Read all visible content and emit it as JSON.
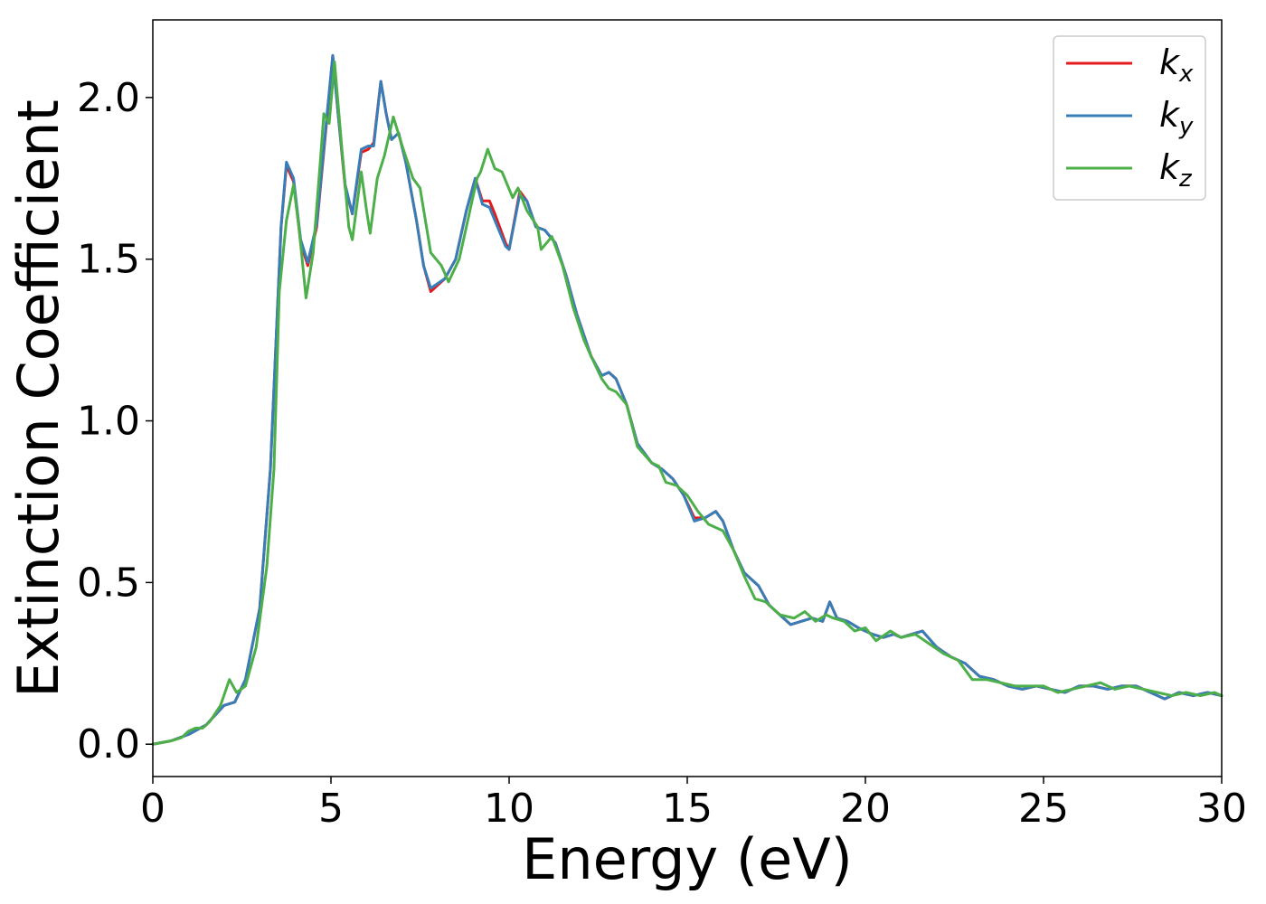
{
  "chart_data": {
    "type": "line",
    "title": "",
    "xlabel": "Energy (eV)",
    "ylabel": "Extinction Coefficient",
    "xlim": [
      0,
      30
    ],
    "ylim": [
      -0.1,
      2.24
    ],
    "xticks": [
      0,
      5,
      10,
      15,
      20,
      25,
      30
    ],
    "xtick_labels": [
      "0",
      "5",
      "10",
      "15",
      "20",
      "25",
      "30"
    ],
    "yticks": [
      0.0,
      0.5,
      1.0,
      1.5,
      2.0
    ],
    "ytick_labels": [
      "0.0",
      "0.5",
      "1.0",
      "1.5",
      "2.0"
    ],
    "grid": false,
    "legend_position": "top-right",
    "series": [
      {
        "name": "k_x",
        "label_main": "k",
        "label_sub": "x",
        "color": "#e41a1c",
        "points": [
          [
            0,
            0
          ],
          [
            0.5,
            0.01
          ],
          [
            1.0,
            0.03
          ],
          [
            1.5,
            0.06
          ],
          [
            2.0,
            0.12
          ],
          [
            2.3,
            0.13
          ],
          [
            2.6,
            0.2
          ],
          [
            3.0,
            0.42
          ],
          [
            3.3,
            0.85
          ],
          [
            3.6,
            1.6
          ],
          [
            3.75,
            1.79
          ],
          [
            3.95,
            1.74
          ],
          [
            4.15,
            1.55
          ],
          [
            4.35,
            1.48
          ],
          [
            4.6,
            1.6
          ],
          [
            4.9,
            1.95
          ],
          [
            5.05,
            2.13
          ],
          [
            5.2,
            1.95
          ],
          [
            5.4,
            1.72
          ],
          [
            5.6,
            1.64
          ],
          [
            5.85,
            1.83
          ],
          [
            6.05,
            1.84
          ],
          [
            6.2,
            1.86
          ],
          [
            6.4,
            2.05
          ],
          [
            6.55,
            1.95
          ],
          [
            6.7,
            1.87
          ],
          [
            6.9,
            1.89
          ],
          [
            7.1,
            1.8
          ],
          [
            7.4,
            1.62
          ],
          [
            7.6,
            1.48
          ],
          [
            7.8,
            1.4
          ],
          [
            8.2,
            1.44
          ],
          [
            8.5,
            1.5
          ],
          [
            8.8,
            1.65
          ],
          [
            9.05,
            1.75
          ],
          [
            9.25,
            1.68
          ],
          [
            9.45,
            1.68
          ],
          [
            9.6,
            1.64
          ],
          [
            9.9,
            1.55
          ],
          [
            10.0,
            1.53
          ],
          [
            10.3,
            1.71
          ],
          [
            10.5,
            1.68
          ],
          [
            10.75,
            1.6
          ],
          [
            11.0,
            1.59
          ],
          [
            11.3,
            1.55
          ],
          [
            11.6,
            1.45
          ],
          [
            11.9,
            1.33
          ],
          [
            12.3,
            1.2
          ],
          [
            12.6,
            1.14
          ],
          [
            12.8,
            1.15
          ],
          [
            13.0,
            1.13
          ],
          [
            13.3,
            1.05
          ],
          [
            13.6,
            0.93
          ],
          [
            14.0,
            0.87
          ],
          [
            14.3,
            0.85
          ],
          [
            14.6,
            0.82
          ],
          [
            14.9,
            0.77
          ],
          [
            15.2,
            0.7
          ],
          [
            15.5,
            0.7
          ],
          [
            15.8,
            0.72
          ],
          [
            16.0,
            0.69
          ],
          [
            16.3,
            0.6
          ],
          [
            16.6,
            0.53
          ],
          [
            17.0,
            0.49
          ],
          [
            17.3,
            0.43
          ],
          [
            17.5,
            0.41
          ],
          [
            17.9,
            0.37
          ],
          [
            18.2,
            0.38
          ],
          [
            18.5,
            0.39
          ],
          [
            18.8,
            0.38
          ],
          [
            19.0,
            0.44
          ],
          [
            19.2,
            0.39
          ],
          [
            19.5,
            0.38
          ],
          [
            19.8,
            0.36
          ],
          [
            20.2,
            0.34
          ],
          [
            20.5,
            0.33
          ],
          [
            20.8,
            0.34
          ],
          [
            21.0,
            0.33
          ],
          [
            21.3,
            0.34
          ],
          [
            21.6,
            0.35
          ],
          [
            22.0,
            0.3
          ],
          [
            22.4,
            0.27
          ],
          [
            22.8,
            0.25
          ],
          [
            23.2,
            0.21
          ],
          [
            23.6,
            0.2
          ],
          [
            24.0,
            0.18
          ],
          [
            24.4,
            0.17
          ],
          [
            24.8,
            0.18
          ],
          [
            25.2,
            0.17
          ],
          [
            25.6,
            0.16
          ],
          [
            26.0,
            0.18
          ],
          [
            26.4,
            0.18
          ],
          [
            26.8,
            0.17
          ],
          [
            27.2,
            0.18
          ],
          [
            27.6,
            0.18
          ],
          [
            28.0,
            0.16
          ],
          [
            28.4,
            0.14
          ],
          [
            28.8,
            0.16
          ],
          [
            29.2,
            0.15
          ],
          [
            29.6,
            0.16
          ],
          [
            30.0,
            0.15
          ]
        ]
      },
      {
        "name": "k_y",
        "label_main": "k",
        "label_sub": "y",
        "color": "#377eb8",
        "points": [
          [
            0,
            0
          ],
          [
            0.5,
            0.01
          ],
          [
            1.0,
            0.03
          ],
          [
            1.5,
            0.06
          ],
          [
            2.0,
            0.12
          ],
          [
            2.3,
            0.13
          ],
          [
            2.6,
            0.2
          ],
          [
            3.0,
            0.42
          ],
          [
            3.3,
            0.85
          ],
          [
            3.6,
            1.6
          ],
          [
            3.75,
            1.8
          ],
          [
            3.95,
            1.75
          ],
          [
            4.15,
            1.56
          ],
          [
            4.35,
            1.49
          ],
          [
            4.6,
            1.61
          ],
          [
            4.9,
            1.96
          ],
          [
            5.05,
            2.13
          ],
          [
            5.2,
            1.95
          ],
          [
            5.4,
            1.73
          ],
          [
            5.6,
            1.64
          ],
          [
            5.85,
            1.84
          ],
          [
            6.05,
            1.85
          ],
          [
            6.2,
            1.85
          ],
          [
            6.4,
            2.05
          ],
          [
            6.55,
            1.95
          ],
          [
            6.7,
            1.87
          ],
          [
            6.9,
            1.89
          ],
          [
            7.1,
            1.8
          ],
          [
            7.4,
            1.62
          ],
          [
            7.6,
            1.48
          ],
          [
            7.8,
            1.41
          ],
          [
            8.2,
            1.44
          ],
          [
            8.5,
            1.5
          ],
          [
            8.8,
            1.65
          ],
          [
            9.05,
            1.75
          ],
          [
            9.25,
            1.67
          ],
          [
            9.45,
            1.66
          ],
          [
            9.6,
            1.62
          ],
          [
            9.9,
            1.54
          ],
          [
            10.0,
            1.53
          ],
          [
            10.3,
            1.7
          ],
          [
            10.5,
            1.68
          ],
          [
            10.75,
            1.6
          ],
          [
            11.0,
            1.59
          ],
          [
            11.3,
            1.55
          ],
          [
            11.6,
            1.45
          ],
          [
            11.9,
            1.33
          ],
          [
            12.3,
            1.2
          ],
          [
            12.6,
            1.14
          ],
          [
            12.8,
            1.15
          ],
          [
            13.0,
            1.13
          ],
          [
            13.3,
            1.05
          ],
          [
            13.6,
            0.93
          ],
          [
            14.0,
            0.87
          ],
          [
            14.3,
            0.85
          ],
          [
            14.6,
            0.82
          ],
          [
            14.9,
            0.77
          ],
          [
            15.2,
            0.69
          ],
          [
            15.5,
            0.7
          ],
          [
            15.8,
            0.72
          ],
          [
            16.0,
            0.69
          ],
          [
            16.3,
            0.6
          ],
          [
            16.6,
            0.53
          ],
          [
            17.0,
            0.49
          ],
          [
            17.3,
            0.43
          ],
          [
            17.5,
            0.41
          ],
          [
            17.9,
            0.37
          ],
          [
            18.2,
            0.38
          ],
          [
            18.5,
            0.39
          ],
          [
            18.8,
            0.38
          ],
          [
            19.0,
            0.44
          ],
          [
            19.2,
            0.39
          ],
          [
            19.5,
            0.38
          ],
          [
            19.8,
            0.36
          ],
          [
            20.2,
            0.34
          ],
          [
            20.5,
            0.33
          ],
          [
            20.8,
            0.34
          ],
          [
            21.0,
            0.33
          ],
          [
            21.3,
            0.34
          ],
          [
            21.6,
            0.35
          ],
          [
            22.0,
            0.3
          ],
          [
            22.4,
            0.27
          ],
          [
            22.8,
            0.25
          ],
          [
            23.2,
            0.21
          ],
          [
            23.6,
            0.2
          ],
          [
            24.0,
            0.18
          ],
          [
            24.4,
            0.17
          ],
          [
            24.8,
            0.18
          ],
          [
            25.2,
            0.17
          ],
          [
            25.6,
            0.16
          ],
          [
            26.0,
            0.18
          ],
          [
            26.4,
            0.18
          ],
          [
            26.8,
            0.17
          ],
          [
            27.2,
            0.18
          ],
          [
            27.6,
            0.18
          ],
          [
            28.0,
            0.16
          ],
          [
            28.4,
            0.14
          ],
          [
            28.8,
            0.16
          ],
          [
            29.2,
            0.15
          ],
          [
            29.6,
            0.16
          ],
          [
            30.0,
            0.15
          ]
        ]
      },
      {
        "name": "k_z",
        "label_main": "k",
        "label_sub": "z",
        "color": "#4daf4a",
        "points": [
          [
            0,
            0
          ],
          [
            0.5,
            0.01
          ],
          [
            0.8,
            0.02
          ],
          [
            1.0,
            0.04
          ],
          [
            1.2,
            0.05
          ],
          [
            1.4,
            0.05
          ],
          [
            1.6,
            0.07
          ],
          [
            1.9,
            0.12
          ],
          [
            2.15,
            0.2
          ],
          [
            2.35,
            0.16
          ],
          [
            2.6,
            0.18
          ],
          [
            2.9,
            0.3
          ],
          [
            3.2,
            0.55
          ],
          [
            3.4,
            0.85
          ],
          [
            3.55,
            1.4
          ],
          [
            3.75,
            1.62
          ],
          [
            3.95,
            1.73
          ],
          [
            4.1,
            1.6
          ],
          [
            4.3,
            1.38
          ],
          [
            4.5,
            1.52
          ],
          [
            4.7,
            1.8
          ],
          [
            4.8,
            1.95
          ],
          [
            4.95,
            1.92
          ],
          [
            5.1,
            2.11
          ],
          [
            5.3,
            1.85
          ],
          [
            5.5,
            1.6
          ],
          [
            5.6,
            1.56
          ],
          [
            5.85,
            1.77
          ],
          [
            6.0,
            1.65
          ],
          [
            6.1,
            1.58
          ],
          [
            6.3,
            1.75
          ],
          [
            6.5,
            1.82
          ],
          [
            6.75,
            1.94
          ],
          [
            7.0,
            1.85
          ],
          [
            7.3,
            1.75
          ],
          [
            7.5,
            1.72
          ],
          [
            7.8,
            1.52
          ],
          [
            8.1,
            1.48
          ],
          [
            8.3,
            1.43
          ],
          [
            8.6,
            1.5
          ],
          [
            8.9,
            1.65
          ],
          [
            9.1,
            1.75
          ],
          [
            9.2,
            1.77
          ],
          [
            9.4,
            1.84
          ],
          [
            9.6,
            1.78
          ],
          [
            9.8,
            1.77
          ],
          [
            10.1,
            1.69
          ],
          [
            10.25,
            1.72
          ],
          [
            10.5,
            1.65
          ],
          [
            10.8,
            1.6
          ],
          [
            10.9,
            1.53
          ],
          [
            11.2,
            1.57
          ],
          [
            11.5,
            1.48
          ],
          [
            11.8,
            1.35
          ],
          [
            12.1,
            1.25
          ],
          [
            12.3,
            1.2
          ],
          [
            12.6,
            1.13
          ],
          [
            12.8,
            1.1
          ],
          [
            13.0,
            1.09
          ],
          [
            13.3,
            1.05
          ],
          [
            13.6,
            0.92
          ],
          [
            14.0,
            0.87
          ],
          [
            14.2,
            0.86
          ],
          [
            14.4,
            0.81
          ],
          [
            14.7,
            0.8
          ],
          [
            15.0,
            0.77
          ],
          [
            15.3,
            0.72
          ],
          [
            15.6,
            0.68
          ],
          [
            16.0,
            0.66
          ],
          [
            16.3,
            0.6
          ],
          [
            16.6,
            0.52
          ],
          [
            16.9,
            0.45
          ],
          [
            17.2,
            0.44
          ],
          [
            17.6,
            0.4
          ],
          [
            18.0,
            0.39
          ],
          [
            18.3,
            0.41
          ],
          [
            18.6,
            0.38
          ],
          [
            18.9,
            0.4
          ],
          [
            19.1,
            0.39
          ],
          [
            19.4,
            0.38
          ],
          [
            19.7,
            0.35
          ],
          [
            20.0,
            0.36
          ],
          [
            20.3,
            0.32
          ],
          [
            20.7,
            0.35
          ],
          [
            21.0,
            0.33
          ],
          [
            21.4,
            0.34
          ],
          [
            21.8,
            0.31
          ],
          [
            22.2,
            0.28
          ],
          [
            22.6,
            0.26
          ],
          [
            23.0,
            0.2
          ],
          [
            23.4,
            0.2
          ],
          [
            23.8,
            0.19
          ],
          [
            24.2,
            0.18
          ],
          [
            24.6,
            0.18
          ],
          [
            25.0,
            0.18
          ],
          [
            25.4,
            0.16
          ],
          [
            25.8,
            0.17
          ],
          [
            26.2,
            0.18
          ],
          [
            26.6,
            0.19
          ],
          [
            27.0,
            0.17
          ],
          [
            27.4,
            0.18
          ],
          [
            27.8,
            0.17
          ],
          [
            28.2,
            0.16
          ],
          [
            28.6,
            0.15
          ],
          [
            29.0,
            0.16
          ],
          [
            29.4,
            0.15
          ],
          [
            29.8,
            0.16
          ],
          [
            30.0,
            0.15
          ]
        ]
      }
    ]
  }
}
